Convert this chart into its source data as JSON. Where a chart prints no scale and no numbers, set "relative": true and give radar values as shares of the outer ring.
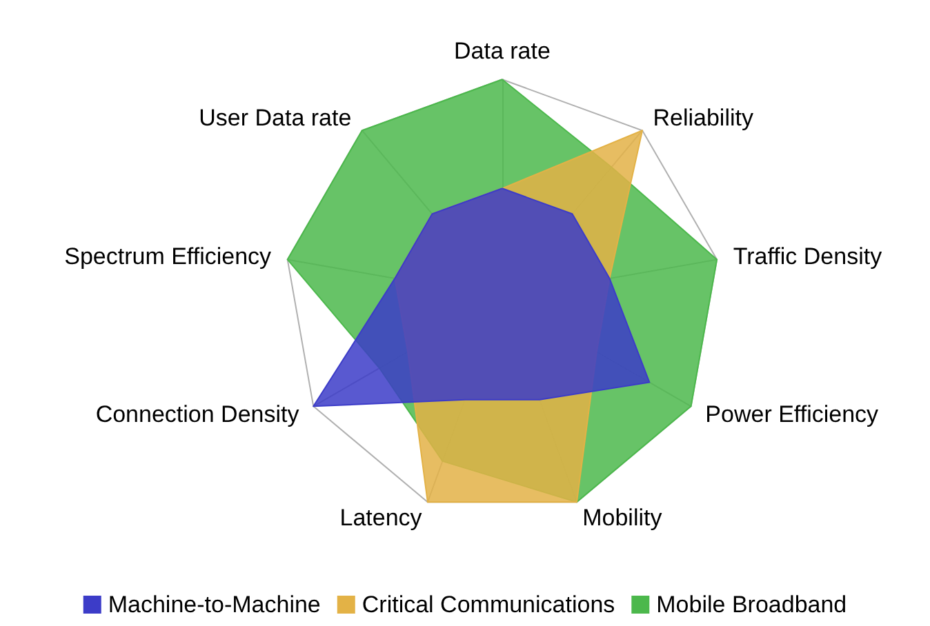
{
  "chart_data": {
    "type": "radar",
    "relative": true,
    "legend": "bottom",
    "categories": [
      "Data rate",
      "Reliability",
      "Traffic Density",
      "Power Efficiency",
      "Mobility",
      "Latency",
      "Connection Density",
      "Spectrum Efficiency",
      "User Data rate"
    ],
    "series": [
      {
        "name": "Machine-to-Machine",
        "color": "#3c3cc8",
        "values": [
          0.5,
          0.5,
          0.5,
          0.78,
          0.5,
          0.5,
          1,
          0.5,
          0.5
        ]
      },
      {
        "name": "Critical Communications",
        "color": "#e3b246",
        "values": [
          0.5,
          1,
          0.5,
          0.5,
          1,
          1,
          0.5,
          0.5,
          0.5
        ]
      },
      {
        "name": "Mobile Broadband",
        "color": "#4cb84c",
        "values": [
          1,
          0.78,
          1,
          1,
          1,
          0.8,
          0.65,
          1,
          1
        ]
      }
    ]
  }
}
